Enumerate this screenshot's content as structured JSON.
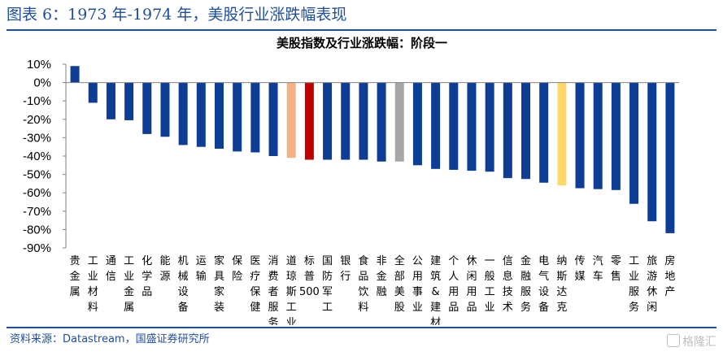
{
  "header": {
    "figure_title": "图表 6：1973 年-1974 年，美股行业涨跌幅表现"
  },
  "footer": {
    "source": "资料来源：Datastream，国盛证券研究所",
    "watermark": "格隆汇"
  },
  "chart_data": {
    "type": "bar",
    "title": "美股指数及行业涨跌幅：阶段一",
    "xlabel": "",
    "ylabel": "",
    "ylim": [
      -0.9,
      0.1
    ],
    "yticks": [
      "10%",
      "0%",
      "-10%",
      "-20%",
      "-30%",
      "-40%",
      "-50%",
      "-60%",
      "-70%",
      "-80%",
      "-90%"
    ],
    "grid": false,
    "legend": "none",
    "categories": [
      "贵金属",
      "工业材料",
      "通信",
      "工业金属",
      "化学品",
      "能源",
      "机械设备",
      "运输",
      "家具家装",
      "保险",
      "医疗保健",
      "消费者服务",
      "道琼斯工业",
      "标普500",
      "国防军工",
      "银行",
      "食品饮料",
      "非金融",
      "全部美股",
      "公用事业",
      "建筑&建材",
      "个人用品",
      "休闲用品",
      "一般工业",
      "信息技术",
      "金融服务",
      "电气设备",
      "纳斯达克",
      "传媒",
      "汽车",
      "零售",
      "工业服务",
      "旅游休闲",
      "房地产"
    ],
    "values": [
      0.09,
      -0.11,
      -0.2,
      -0.205,
      -0.28,
      -0.295,
      -0.34,
      -0.35,
      -0.36,
      -0.375,
      -0.38,
      -0.4,
      -0.41,
      -0.42,
      -0.42,
      -0.42,
      -0.42,
      -0.43,
      -0.43,
      -0.45,
      -0.47,
      -0.475,
      -0.48,
      -0.485,
      -0.52,
      -0.525,
      -0.545,
      -0.56,
      -0.575,
      -0.58,
      -0.585,
      -0.66,
      -0.755,
      -0.82
    ],
    "colors": [
      "#0d3d94",
      "#0d3d94",
      "#0d3d94",
      "#0d3d94",
      "#0d3d94",
      "#0d3d94",
      "#0d3d94",
      "#0d3d94",
      "#0d3d94",
      "#0d3d94",
      "#0d3d94",
      "#0d3d94",
      "#f4b183",
      "#c00000",
      "#0d3d94",
      "#0d3d94",
      "#0d3d94",
      "#0d3d94",
      "#a6a6a6",
      "#0d3d94",
      "#0d3d94",
      "#0d3d94",
      "#0d3d94",
      "#0d3d94",
      "#0d3d94",
      "#0d3d94",
      "#0d3d94",
      "#ffd966",
      "#0d3d94",
      "#0d3d94",
      "#0d3d94",
      "#0d3d94",
      "#0d3d94",
      "#0d3d94"
    ]
  }
}
